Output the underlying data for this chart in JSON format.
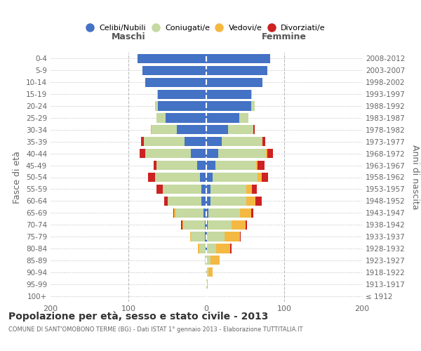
{
  "age_groups": [
    "100+",
    "95-99",
    "90-94",
    "85-89",
    "80-84",
    "75-79",
    "70-74",
    "65-69",
    "60-64",
    "55-59",
    "50-54",
    "45-49",
    "40-44",
    "35-39",
    "30-34",
    "25-29",
    "20-24",
    "15-19",
    "10-14",
    "5-9",
    "0-4"
  ],
  "birth_years": [
    "≤ 1912",
    "1913-1917",
    "1918-1922",
    "1923-1927",
    "1928-1932",
    "1933-1937",
    "1938-1942",
    "1943-1947",
    "1948-1952",
    "1953-1957",
    "1958-1962",
    "1963-1967",
    "1968-1972",
    "1973-1977",
    "1978-1982",
    "1983-1987",
    "1988-1992",
    "1993-1997",
    "1998-2002",
    "2003-2007",
    "2008-2012"
  ],
  "maschi_celibi": [
    0,
    0,
    0,
    0,
    1,
    2,
    2,
    4,
    6,
    6,
    8,
    12,
    20,
    28,
    38,
    52,
    62,
    62,
    78,
    82,
    88
  ],
  "maschi_coniugati": [
    0,
    0,
    1,
    2,
    8,
    18,
    28,
    36,
    44,
    50,
    58,
    52,
    58,
    52,
    32,
    12,
    4,
    1,
    0,
    0,
    0
  ],
  "maschi_vedovi": [
    0,
    0,
    0,
    0,
    2,
    1,
    1,
    1,
    0,
    0,
    0,
    0,
    0,
    0,
    1,
    0,
    0,
    0,
    0,
    0,
    0
  ],
  "maschi_divorziati": [
    0,
    0,
    0,
    0,
    0,
    0,
    1,
    1,
    4,
    8,
    9,
    4,
    8,
    4,
    0,
    0,
    0,
    0,
    0,
    0,
    0
  ],
  "femmine_nubili": [
    0,
    0,
    0,
    0,
    1,
    1,
    2,
    3,
    5,
    5,
    8,
    12,
    15,
    20,
    28,
    42,
    58,
    58,
    72,
    78,
    82
  ],
  "femmine_coniugate": [
    0,
    1,
    3,
    5,
    12,
    22,
    30,
    40,
    46,
    46,
    58,
    52,
    62,
    52,
    32,
    12,
    4,
    1,
    0,
    0,
    0
  ],
  "femmine_vedove": [
    0,
    1,
    5,
    12,
    18,
    20,
    18,
    15,
    12,
    8,
    5,
    2,
    1,
    0,
    0,
    0,
    0,
    0,
    0,
    0,
    0
  ],
  "femmine_divorziate": [
    0,
    0,
    0,
    0,
    1,
    1,
    2,
    2,
    8,
    6,
    8,
    9,
    8,
    4,
    2,
    0,
    0,
    0,
    0,
    0,
    0
  ],
  "color_celibi": "#4472C4",
  "color_coniugati": "#c5d9a0",
  "color_vedovi": "#f4b942",
  "color_divorziati": "#cc2222",
  "xlim": 200,
  "title": "Popolazione per età, sesso e stato civile - 2013",
  "subtitle": "COMUNE DI SANT'OMOBONO TERME (BG) - Dati ISTAT 1° gennaio 2013 - Elaborazione TUTTITALIA.IT",
  "ylabel_left": "Fasce di età",
  "ylabel_right": "Anni di nascita",
  "header_maschi": "Maschi",
  "header_femmine": "Femmine",
  "legend_labels": [
    "Celibi/Nubili",
    "Coniugati/e",
    "Vedovi/e",
    "Divorziati/e"
  ]
}
